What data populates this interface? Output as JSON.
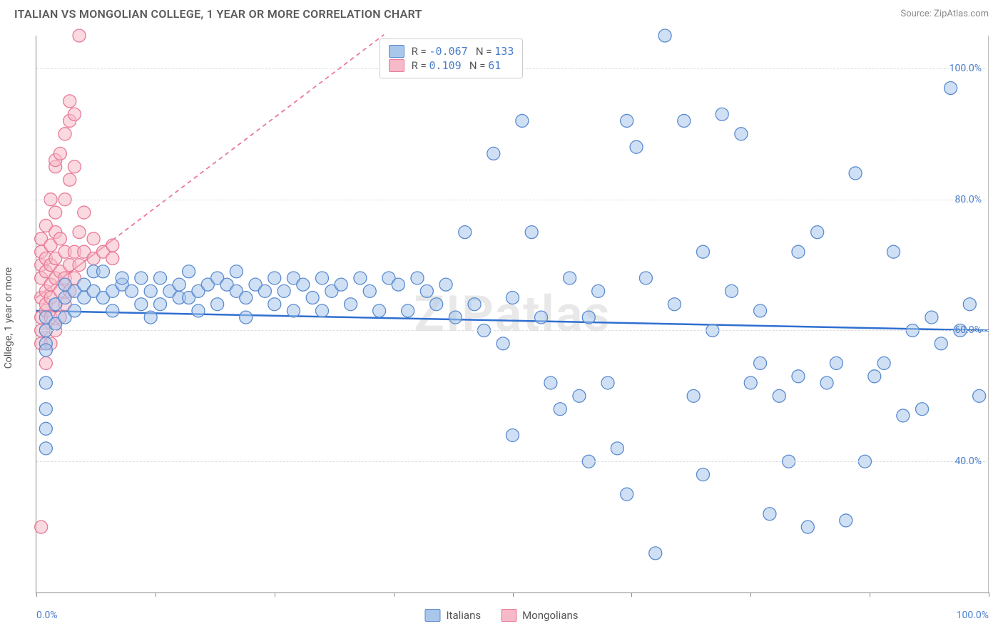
{
  "title": "ITALIAN VS MONGOLIAN COLLEGE, 1 YEAR OR MORE CORRELATION CHART",
  "source": "Source: ZipAtlas.com",
  "watermark": "ZIPatlas",
  "yaxis_label": "College, 1 year or more",
  "chart": {
    "type": "scatter",
    "xlim": [
      0,
      100
    ],
    "ylim": [
      20,
      105
    ],
    "yticks": [
      40,
      60,
      80,
      100
    ],
    "ytick_labels": [
      "40.0%",
      "60.0%",
      "80.0%",
      "100.0%"
    ],
    "xtick_positions": [
      0,
      12.5,
      25,
      37.5,
      50,
      62.5,
      75,
      87.5,
      100
    ],
    "xtick_labels_shown": {
      "0": "0.0%",
      "100": "100.0%"
    },
    "background_color": "#ffffff",
    "grid_color": "#dddddd",
    "axis_color": "#888888",
    "series": {
      "italians": {
        "label": "Italians",
        "fill_color": "#a9c7eb",
        "stroke_color": "#5a8bd0",
        "fill_opacity": 0.55,
        "marker_r": 9,
        "trend": {
          "y_at_x0": 63,
          "y_at_x100": 60,
          "color": "#2f6fd0",
          "width": 2.5,
          "dash_extension": false
        },
        "R": "-0.067",
        "N": "133",
        "points": [
          [
            1,
            42
          ],
          [
            1,
            45
          ],
          [
            1,
            48
          ],
          [
            1,
            52
          ],
          [
            1,
            58
          ],
          [
            1,
            57
          ],
          [
            1,
            60
          ],
          [
            1,
            62
          ],
          [
            2,
            61
          ],
          [
            2,
            64
          ],
          [
            3,
            65
          ],
          [
            3,
            62
          ],
          [
            3,
            67
          ],
          [
            4,
            66
          ],
          [
            4,
            63
          ],
          [
            5,
            65
          ],
          [
            5,
            67
          ],
          [
            6,
            66
          ],
          [
            6,
            69
          ],
          [
            7,
            65
          ],
          [
            7,
            69
          ],
          [
            8,
            66
          ],
          [
            8,
            63
          ],
          [
            9,
            67
          ],
          [
            9,
            68
          ],
          [
            10,
            66
          ],
          [
            11,
            64
          ],
          [
            11,
            68
          ],
          [
            12,
            66
          ],
          [
            12,
            62
          ],
          [
            13,
            68
          ],
          [
            13,
            64
          ],
          [
            14,
            66
          ],
          [
            15,
            67
          ],
          [
            15,
            65
          ],
          [
            16,
            69
          ],
          [
            16,
            65
          ],
          [
            17,
            66
          ],
          [
            17,
            63
          ],
          [
            18,
            67
          ],
          [
            19,
            68
          ],
          [
            19,
            64
          ],
          [
            20,
            67
          ],
          [
            21,
            66
          ],
          [
            21,
            69
          ],
          [
            22,
            65
          ],
          [
            22,
            62
          ],
          [
            23,
            67
          ],
          [
            24,
            66
          ],
          [
            25,
            68
          ],
          [
            25,
            64
          ],
          [
            26,
            66
          ],
          [
            27,
            63
          ],
          [
            27,
            68
          ],
          [
            28,
            67
          ],
          [
            29,
            65
          ],
          [
            30,
            68
          ],
          [
            30,
            63
          ],
          [
            31,
            66
          ],
          [
            32,
            67
          ],
          [
            33,
            64
          ],
          [
            34,
            68
          ],
          [
            35,
            66
          ],
          [
            36,
            63
          ],
          [
            37,
            68
          ],
          [
            38,
            67
          ],
          [
            39,
            63
          ],
          [
            40,
            68
          ],
          [
            41,
            66
          ],
          [
            42,
            64
          ],
          [
            43,
            67
          ],
          [
            44,
            62
          ],
          [
            45,
            75
          ],
          [
            46,
            64
          ],
          [
            47,
            60
          ],
          [
            48,
            87
          ],
          [
            49,
            58
          ],
          [
            50,
            65
          ],
          [
            50,
            44
          ],
          [
            51,
            92
          ],
          [
            52,
            75
          ],
          [
            53,
            62
          ],
          [
            54,
            52
          ],
          [
            55,
            48
          ],
          [
            56,
            68
          ],
          [
            57,
            50
          ],
          [
            58,
            62
          ],
          [
            58,
            40
          ],
          [
            59,
            66
          ],
          [
            60,
            52
          ],
          [
            61,
            42
          ],
          [
            62,
            92
          ],
          [
            62,
            35
          ],
          [
            63,
            88
          ],
          [
            64,
            68
          ],
          [
            65,
            26
          ],
          [
            66,
            105
          ],
          [
            67,
            64
          ],
          [
            68,
            92
          ],
          [
            69,
            50
          ],
          [
            70,
            38
          ],
          [
            70,
            72
          ],
          [
            71,
            60
          ],
          [
            72,
            93
          ],
          [
            73,
            66
          ],
          [
            74,
            90
          ],
          [
            75,
            52
          ],
          [
            76,
            55
          ],
          [
            76,
            63
          ],
          [
            77,
            32
          ],
          [
            78,
            50
          ],
          [
            79,
            40
          ],
          [
            80,
            53
          ],
          [
            80,
            72
          ],
          [
            81,
            30
          ],
          [
            82,
            75
          ],
          [
            83,
            52
          ],
          [
            84,
            55
          ],
          [
            85,
            31
          ],
          [
            86,
            84
          ],
          [
            87,
            40
          ],
          [
            88,
            53
          ],
          [
            89,
            55
          ],
          [
            90,
            72
          ],
          [
            91,
            47
          ],
          [
            92,
            60
          ],
          [
            93,
            48
          ],
          [
            94,
            62
          ],
          [
            95,
            58
          ],
          [
            96,
            97
          ],
          [
            97,
            60
          ],
          [
            98,
            64
          ],
          [
            99,
            50
          ]
        ]
      },
      "mongolians": {
        "label": "Mongolians",
        "fill_color": "#f5b9c7",
        "stroke_color": "#e87a97",
        "fill_opacity": 0.55,
        "marker_r": 9,
        "trend": {
          "y_at_x0": 65,
          "y_at_x100": 175,
          "color": "#e87a97",
          "width": 2.2,
          "solid_until_x": 8
        },
        "R": "0.109",
        "N": "61",
        "points": [
          [
            0.5,
            30
          ],
          [
            0.5,
            58
          ],
          [
            0.5,
            60
          ],
          [
            0.5,
            62
          ],
          [
            0.5,
            65
          ],
          [
            0.5,
            68
          ],
          [
            0.5,
            70
          ],
          [
            0.5,
            72
          ],
          [
            0.5,
            74
          ],
          [
            1,
            55
          ],
          [
            1,
            60
          ],
          [
            1,
            63
          ],
          [
            1,
            66
          ],
          [
            1,
            69
          ],
          [
            1,
            71
          ],
          [
            1,
            64
          ],
          [
            1,
            76
          ],
          [
            1.5,
            58
          ],
          [
            1.5,
            62
          ],
          [
            1.5,
            65
          ],
          [
            1.5,
            67
          ],
          [
            1.5,
            70
          ],
          [
            1.5,
            73
          ],
          [
            1.5,
            80
          ],
          [
            2,
            60
          ],
          [
            2,
            64
          ],
          [
            2,
            68
          ],
          [
            2,
            71
          ],
          [
            2,
            75
          ],
          [
            2,
            78
          ],
          [
            2,
            85
          ],
          [
            2,
            86
          ],
          [
            2.5,
            62
          ],
          [
            2.5,
            66
          ],
          [
            2.5,
            69
          ],
          [
            2.5,
            74
          ],
          [
            2.5,
            87
          ],
          [
            3,
            64
          ],
          [
            3,
            68
          ],
          [
            3,
            72
          ],
          [
            3,
            80
          ],
          [
            3,
            90
          ],
          [
            3.5,
            66
          ],
          [
            3.5,
            70
          ],
          [
            3.5,
            83
          ],
          [
            3.5,
            92
          ],
          [
            3.5,
            95
          ],
          [
            4,
            68
          ],
          [
            4,
            72
          ],
          [
            4,
            85
          ],
          [
            4,
            93
          ],
          [
            4.5,
            70
          ],
          [
            4.5,
            75
          ],
          [
            4.5,
            105
          ],
          [
            5,
            72
          ],
          [
            5,
            78
          ],
          [
            6,
            74
          ],
          [
            6,
            71
          ],
          [
            7,
            72
          ],
          [
            8,
            71
          ],
          [
            8,
            73
          ]
        ]
      }
    }
  },
  "legend": {
    "rows": [
      {
        "swatch_fill": "#a9c7eb",
        "swatch_stroke": "#5a8bd0",
        "R_label": "R =",
        "R": "-0.067",
        "N_label": "N =",
        "N": "133"
      },
      {
        "swatch_fill": "#f5b9c7",
        "swatch_stroke": "#e87a97",
        "R_label": "R =",
        "R": " 0.109",
        "N_label": "N =",
        "N": " 61"
      }
    ]
  },
  "bottom_legend": [
    {
      "fill": "#a9c7eb",
      "stroke": "#5a8bd0",
      "label": "Italians"
    },
    {
      "fill": "#f5b9c7",
      "stroke": "#e87a97",
      "label": "Mongolians"
    }
  ]
}
